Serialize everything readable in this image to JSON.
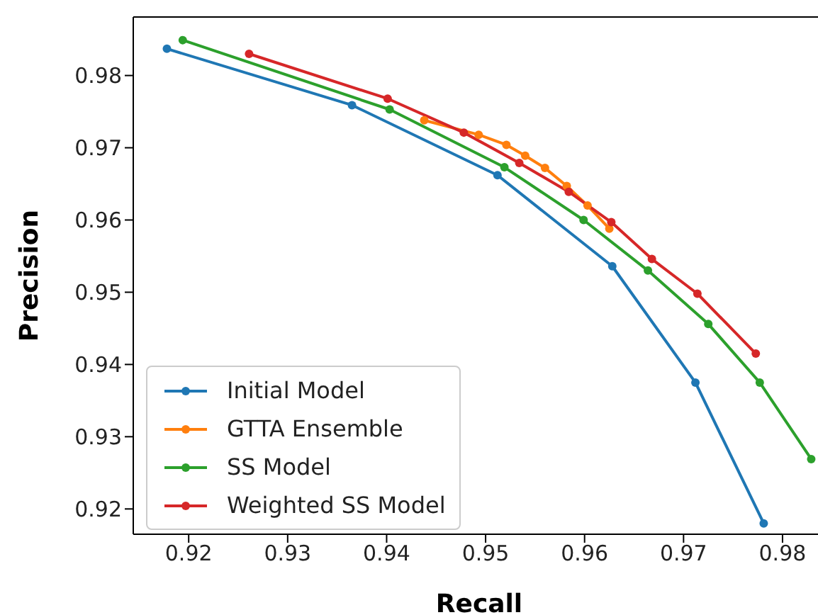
{
  "chart_data": {
    "type": "line",
    "xlabel": "Recall",
    "ylabel": "Precision",
    "xlim": [
      0.9144,
      0.9843
    ],
    "ylim": [
      0.9165,
      0.9881
    ],
    "xticks": [
      0.92,
      0.93,
      0.94,
      0.95,
      0.96,
      0.97,
      0.98
    ],
    "yticks": [
      0.92,
      0.93,
      0.94,
      0.95,
      0.96,
      0.97,
      0.98
    ],
    "grid": false,
    "legend": "bottom left",
    "marker": "circle",
    "line_style": "solid",
    "series": [
      {
        "name": "Initial Model",
        "color": "#1f77b4",
        "x": [
          0.9178,
          0.9365,
          0.9512,
          0.9628,
          0.9712,
          0.9781
        ],
        "values": [
          0.9837,
          0.9759,
          0.9662,
          0.9536,
          0.9375,
          0.918
        ]
      },
      {
        "name": "GTTA Ensemble",
        "color": "#ff7f0e",
        "x": [
          0.9438,
          0.9493,
          0.9521,
          0.954,
          0.956,
          0.9582,
          0.9603,
          0.9625
        ],
        "values": [
          0.9738,
          0.9718,
          0.9704,
          0.9689,
          0.9672,
          0.9647,
          0.962,
          0.9588
        ]
      },
      {
        "name": "SS Model",
        "color": "#2ca02c",
        "x": [
          0.9194,
          0.9403,
          0.9519,
          0.9599,
          0.9664,
          0.9725,
          0.9777,
          0.9829
        ],
        "values": [
          0.9849,
          0.9753,
          0.9673,
          0.96,
          0.953,
          0.9456,
          0.9375,
          0.9269
        ]
      },
      {
        "name": "Weighted SS Model",
        "color": "#d62728",
        "x": [
          0.9261,
          0.9401,
          0.9478,
          0.9534,
          0.9584,
          0.9627,
          0.9668,
          0.9714,
          0.9773
        ],
        "values": [
          0.983,
          0.9768,
          0.9721,
          0.9679,
          0.9639,
          0.9597,
          0.9546,
          0.9498,
          0.9415
        ]
      }
    ]
  }
}
